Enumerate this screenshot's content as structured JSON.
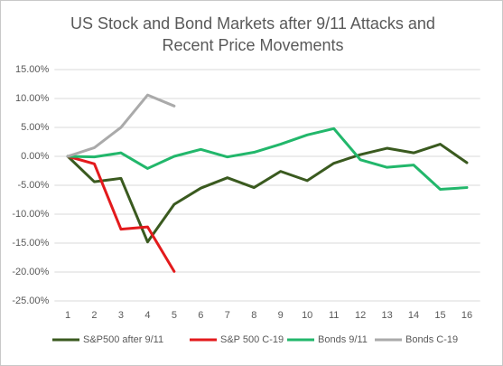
{
  "chart_data": {
    "type": "line",
    "title": "US Stock and Bond Markets after 9/11 Attacks and Recent Price Movements",
    "categories": [
      "1",
      "2",
      "3",
      "4",
      "5",
      "6",
      "7",
      "8",
      "9",
      "10",
      "11",
      "12",
      "13",
      "14",
      "15",
      "16"
    ],
    "series": [
      {
        "name": "S&P500 after 9/11",
        "color": "#3a5a1f",
        "values": [
          0,
          -4.4,
          -3.8,
          -14.8,
          -8.3,
          -5.5,
          -3.7,
          -5.4,
          -2.6,
          -4.2,
          -1.2,
          0.3,
          1.4,
          0.6,
          2.1,
          -1.1
        ]
      },
      {
        "name": "S&P 500 C-19",
        "color": "#e31a1c",
        "values": [
          0,
          -1.3,
          -12.6,
          -12.2,
          -19.9,
          null,
          null,
          null,
          null,
          null,
          null,
          null,
          null,
          null,
          null,
          null
        ]
      },
      {
        "name": "Bonds 9/11",
        "color": "#22b76b",
        "values": [
          0,
          -0.1,
          0.6,
          -2.1,
          0,
          1.2,
          -0.1,
          0.7,
          2.1,
          3.7,
          4.8,
          -0.6,
          -1.9,
          -1.5,
          -5.7,
          -5.4
        ]
      },
      {
        "name": "Bonds C-19",
        "color": "#aaaaaa",
        "values": [
          0,
          1.5,
          5,
          10.6,
          8.7,
          null,
          null,
          null,
          null,
          null,
          null,
          null,
          null,
          null,
          null,
          null
        ]
      }
    ],
    "ylim": [
      -25,
      15
    ],
    "yticks": [
      {
        "value": -25,
        "label": "-25.00%"
      },
      {
        "value": -20,
        "label": "-20.00%"
      },
      {
        "value": -15,
        "label": "-15.00%"
      },
      {
        "value": -10,
        "label": "-10.00%"
      },
      {
        "value": -5,
        "label": "-5.00%"
      },
      {
        "value": 0,
        "label": "0.00%"
      },
      {
        "value": 5,
        "label": "5.00%"
      },
      {
        "value": 10,
        "label": "10.00%"
      },
      {
        "value": 15,
        "label": "15.00%"
      }
    ],
    "grid": true,
    "legend": "bottom"
  }
}
